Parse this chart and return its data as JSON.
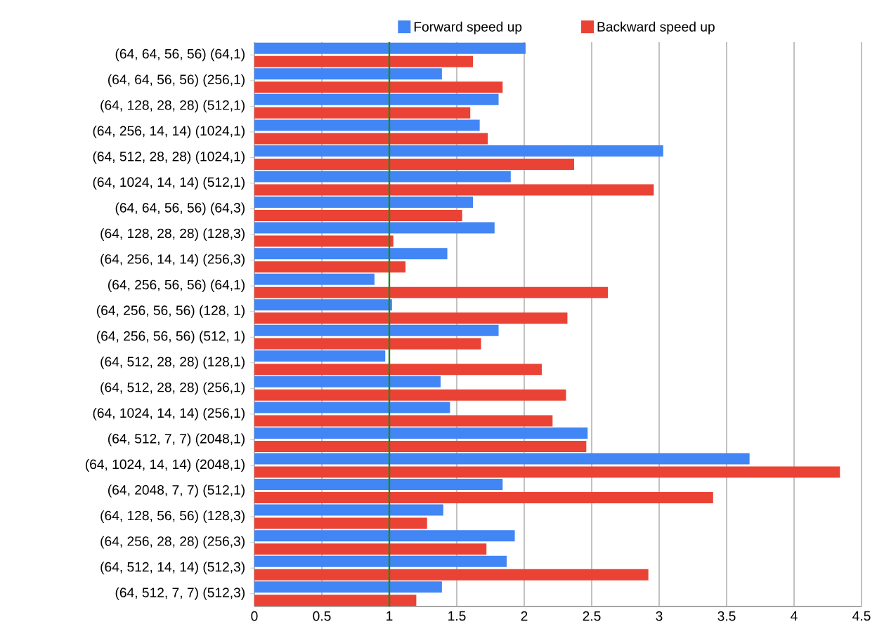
{
  "chart_data": {
    "type": "bar",
    "orientation": "horizontal",
    "categories": [
      "(64, 64, 56, 56) (64,1)",
      "(64, 64, 56, 56) (256,1)",
      "(64, 128, 28, 28) (512,1)",
      "(64, 256, 14, 14) (1024,1)",
      "(64, 512, 28, 28) (1024,1)",
      "(64, 1024, 14, 14) (512,1)",
      "(64, 64, 56, 56) (64,3)",
      "(64, 128, 28, 28) (128,3)",
      "(64, 256, 14, 14) (256,3)",
      "(64, 256, 56, 56) (64,1)",
      "(64, 256, 56, 56) (128, 1)",
      "(64, 256, 56, 56) (512, 1)",
      "(64, 512, 28, 28) (128,1)",
      "(64, 512, 28, 28) (256,1)",
      "(64, 1024, 14, 14) (256,1)",
      "(64, 512, 7, 7) (2048,1)",
      "(64, 1024, 14, 14) (2048,1)",
      "(64, 2048, 7, 7) (512,1)",
      "(64, 128, 56, 56) (128,3)",
      "(64, 256, 28, 28) (256,3)",
      "(64, 512, 14, 14) (512,3)",
      "(64, 512, 7, 7) (512,3)"
    ],
    "series": [
      {
        "name": "Forward speed up",
        "color": "#4285f4",
        "values": [
          2.01,
          1.39,
          1.81,
          1.67,
          3.03,
          1.9,
          1.62,
          1.78,
          1.43,
          0.89,
          1.02,
          1.81,
          0.97,
          1.38,
          1.45,
          2.47,
          3.67,
          1.84,
          1.4,
          1.93,
          1.87,
          1.39
        ]
      },
      {
        "name": "Backward speed up",
        "color": "#ea4335",
        "values": [
          1.62,
          1.84,
          1.6,
          1.73,
          2.37,
          2.96,
          1.54,
          1.03,
          1.12,
          2.62,
          2.32,
          1.68,
          2.13,
          2.31,
          2.21,
          2.46,
          4.34,
          3.4,
          1.28,
          1.72,
          2.92,
          1.2
        ]
      }
    ],
    "xlim": [
      0,
      4.5
    ],
    "xticks": [
      0,
      0.5,
      1,
      1.5,
      2,
      2.5,
      3,
      3.5,
      4,
      4.5
    ],
    "grid": "x",
    "legend": "top",
    "ref_lines": [
      {
        "axis": "x",
        "value": 1,
        "color": "#1e8a1e"
      }
    ]
  }
}
